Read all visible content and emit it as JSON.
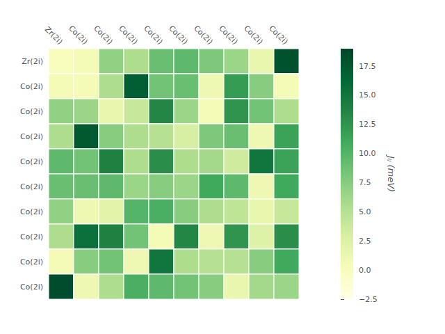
{
  "chart_data": {
    "type": "heatmap",
    "row_labels": [
      "Zr(2i)",
      "Co(2i)",
      "Co(2i)",
      "Co(2i)",
      "Co(2i)",
      "Co(2i)",
      "Co(2i)",
      "Co(2i)",
      "Co(2i)",
      "Co(2i)"
    ],
    "col_labels": [
      "Zr(2i)",
      "Co(2i)",
      "Co(2i)",
      "Co(2i)",
      "Co(2i)",
      "Co(2i)",
      "Co(2i)",
      "Co(2i)",
      "Co(2i)",
      "Co(2i)"
    ],
    "matrix": [
      [
        0.0,
        0.5,
        7.0,
        5.5,
        9.0,
        9.5,
        8.0,
        6.5,
        1.5,
        18.0
      ],
      [
        0.5,
        0.5,
        5.5,
        17.0,
        8.5,
        9.0,
        1.0,
        12.0,
        7.5,
        0.5
      ],
      [
        7.0,
        6.5,
        1.5,
        4.0,
        13.5,
        6.5,
        0.5,
        12.5,
        8.5,
        5.5
      ],
      [
        5.5,
        17.5,
        7.5,
        5.5,
        5.0,
        3.0,
        8.0,
        9.0,
        1.0,
        11.5
      ],
      [
        9.5,
        8.5,
        14.0,
        5.5,
        13.0,
        5.5,
        6.0,
        3.5,
        15.0,
        11.5
      ],
      [
        9.0,
        9.0,
        9.5,
        6.5,
        7.5,
        6.5,
        11.0,
        9.5,
        1.0,
        11.0
      ],
      [
        7.0,
        1.0,
        2.0,
        10.0,
        10.5,
        7.5,
        5.5,
        4.5,
        1.5,
        4.0
      ],
      [
        5.5,
        15.5,
        14.0,
        8.5,
        0.5,
        13.5,
        1.0,
        12.5,
        2.5,
        13.0
      ],
      [
        0.5,
        7.5,
        8.5,
        1.0,
        15.0,
        5.5,
        5.0,
        5.0,
        7.5,
        11.0
      ],
      [
        18.5,
        1.0,
        5.5,
        10.5,
        9.5,
        8.5,
        7.5,
        1.5,
        6.0,
        6.5
      ]
    ],
    "cbar_label": "Jᵢⱼ (meV)",
    "clim": [
      -2.5,
      19.0
    ],
    "cbar_ticks": [
      {
        "value": -2.5,
        "label": "−2.5"
      },
      {
        "value": 0.0,
        "label": "0.0"
      },
      2.5,
      {
        "value": 5.0,
        "label": "5.0"
      },
      7.5,
      {
        "value": 10.0,
        "label": "10.0"
      },
      12.5,
      {
        "value": 15.0,
        "label": "15.0"
      },
      17.5
    ]
  }
}
